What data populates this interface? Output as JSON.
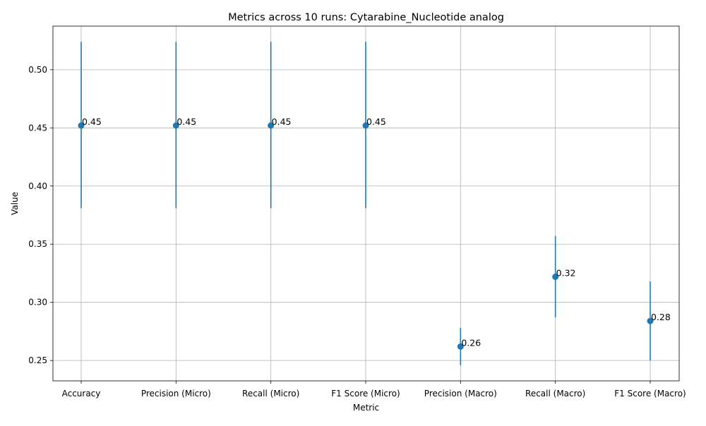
{
  "chart_data": {
    "type": "scatter",
    "title": "Metrics across 10 runs: Cytarabine_Nucleotide analog",
    "xlabel": "Metric",
    "ylabel": "Value",
    "categories": [
      "Accuracy",
      "Precision (Micro)",
      "Recall (Micro)",
      "F1 Score (Micro)",
      "Precision (Macro)",
      "Recall (Macro)",
      "F1 Score (Macro)"
    ],
    "values": [
      0.452,
      0.452,
      0.452,
      0.452,
      0.262,
      0.322,
      0.284
    ],
    "error_low": [
      0.381,
      0.381,
      0.381,
      0.381,
      0.246,
      0.287,
      0.25
    ],
    "error_high": [
      0.524,
      0.524,
      0.524,
      0.524,
      0.278,
      0.357,
      0.318
    ],
    "point_labels": [
      "0.45",
      "0.45",
      "0.45",
      "0.45",
      "0.26",
      "0.32",
      "0.28"
    ],
    "yticks": [
      "0.25",
      "0.30",
      "0.35",
      "0.40",
      "0.45",
      "0.50"
    ],
    "ylim": [
      0.2325,
      0.5375
    ],
    "grid": true,
    "color": "#1f77b4"
  }
}
